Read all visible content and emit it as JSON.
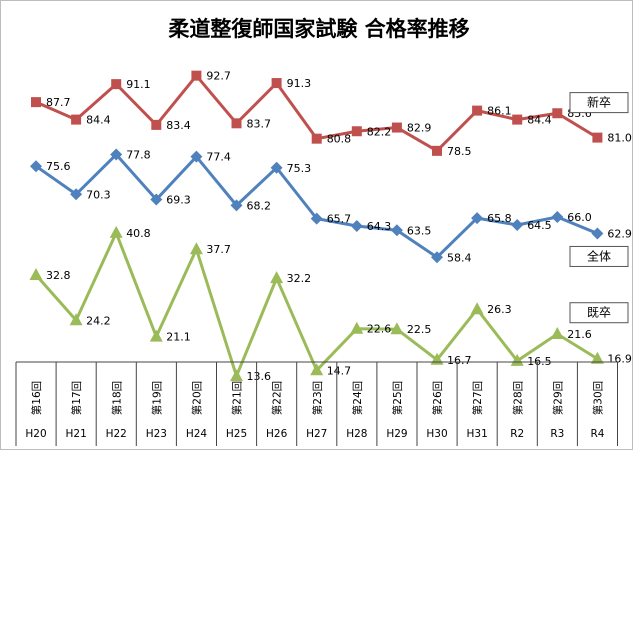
{
  "chart_data": {
    "type": "line",
    "title": "柔道整復師国家試験 合格率推移",
    "categories": [
      {
        "exam": "第16回",
        "era": "H20"
      },
      {
        "exam": "第17回",
        "era": "H21"
      },
      {
        "exam": "第18回",
        "era": "H22"
      },
      {
        "exam": "第19回",
        "era": "H23"
      },
      {
        "exam": "第20回",
        "era": "H24"
      },
      {
        "exam": "第21回",
        "era": "H25"
      },
      {
        "exam": "第22回",
        "era": "H26"
      },
      {
        "exam": "第23回",
        "era": "H27"
      },
      {
        "exam": "第24回",
        "era": "H28"
      },
      {
        "exam": "第25回",
        "era": "H29"
      },
      {
        "exam": "第26回",
        "era": "H30"
      },
      {
        "exam": "第27回",
        "era": "H31"
      },
      {
        "exam": "第28回",
        "era": "R2"
      },
      {
        "exam": "第29回",
        "era": "R3"
      },
      {
        "exam": "第30回",
        "era": "R4"
      }
    ],
    "series": [
      {
        "name": "新卒",
        "color": "#c0504d",
        "marker": "square",
        "values": [
          87.7,
          84.4,
          91.1,
          83.4,
          92.7,
          83.7,
          91.3,
          80.8,
          82.2,
          82.9,
          78.5,
          86.1,
          84.4,
          85.6,
          81.0
        ],
        "labels": [
          "87.7",
          "84.4",
          "91.1",
          "83.4",
          "92.7",
          "83.7",
          "91.3",
          "80.8",
          "82.2",
          "82.9",
          "78.5",
          "86.1",
          "84.4",
          "85.6",
          "81.0"
        ]
      },
      {
        "name": "全体",
        "color": "#4f81bd",
        "marker": "diamond",
        "values": [
          75.6,
          70.3,
          77.8,
          69.3,
          77.4,
          68.2,
          75.3,
          65.7,
          64.3,
          63.5,
          58.4,
          65.8,
          64.5,
          66.0,
          62.9
        ],
        "labels": [
          "75.6",
          "70.3",
          "77.8",
          "69.3",
          "77.4",
          "68.2",
          "75.3",
          "65.7",
          "64.3",
          "63.5",
          "58.4",
          "65.8",
          "64.5",
          "66.0",
          "62.9"
        ]
      },
      {
        "name": "既卒",
        "color": "#9bbb59",
        "marker": "triangle",
        "values": [
          32.8,
          24.2,
          40.8,
          21.1,
          37.7,
          13.6,
          32.2,
          14.7,
          22.6,
          22.5,
          16.7,
          26.3,
          16.5,
          21.6,
          16.9
        ],
        "labels": [
          "32.8",
          "24.2",
          "40.8",
          "21.1",
          "37.7",
          "13.6",
          "32.2",
          "14.7",
          "22.6",
          "22.5",
          "16.7",
          "26.3",
          "16.5",
          "21.6",
          "16.9"
        ]
      }
    ],
    "legend_placement": "right-of-series",
    "grid": false
  }
}
